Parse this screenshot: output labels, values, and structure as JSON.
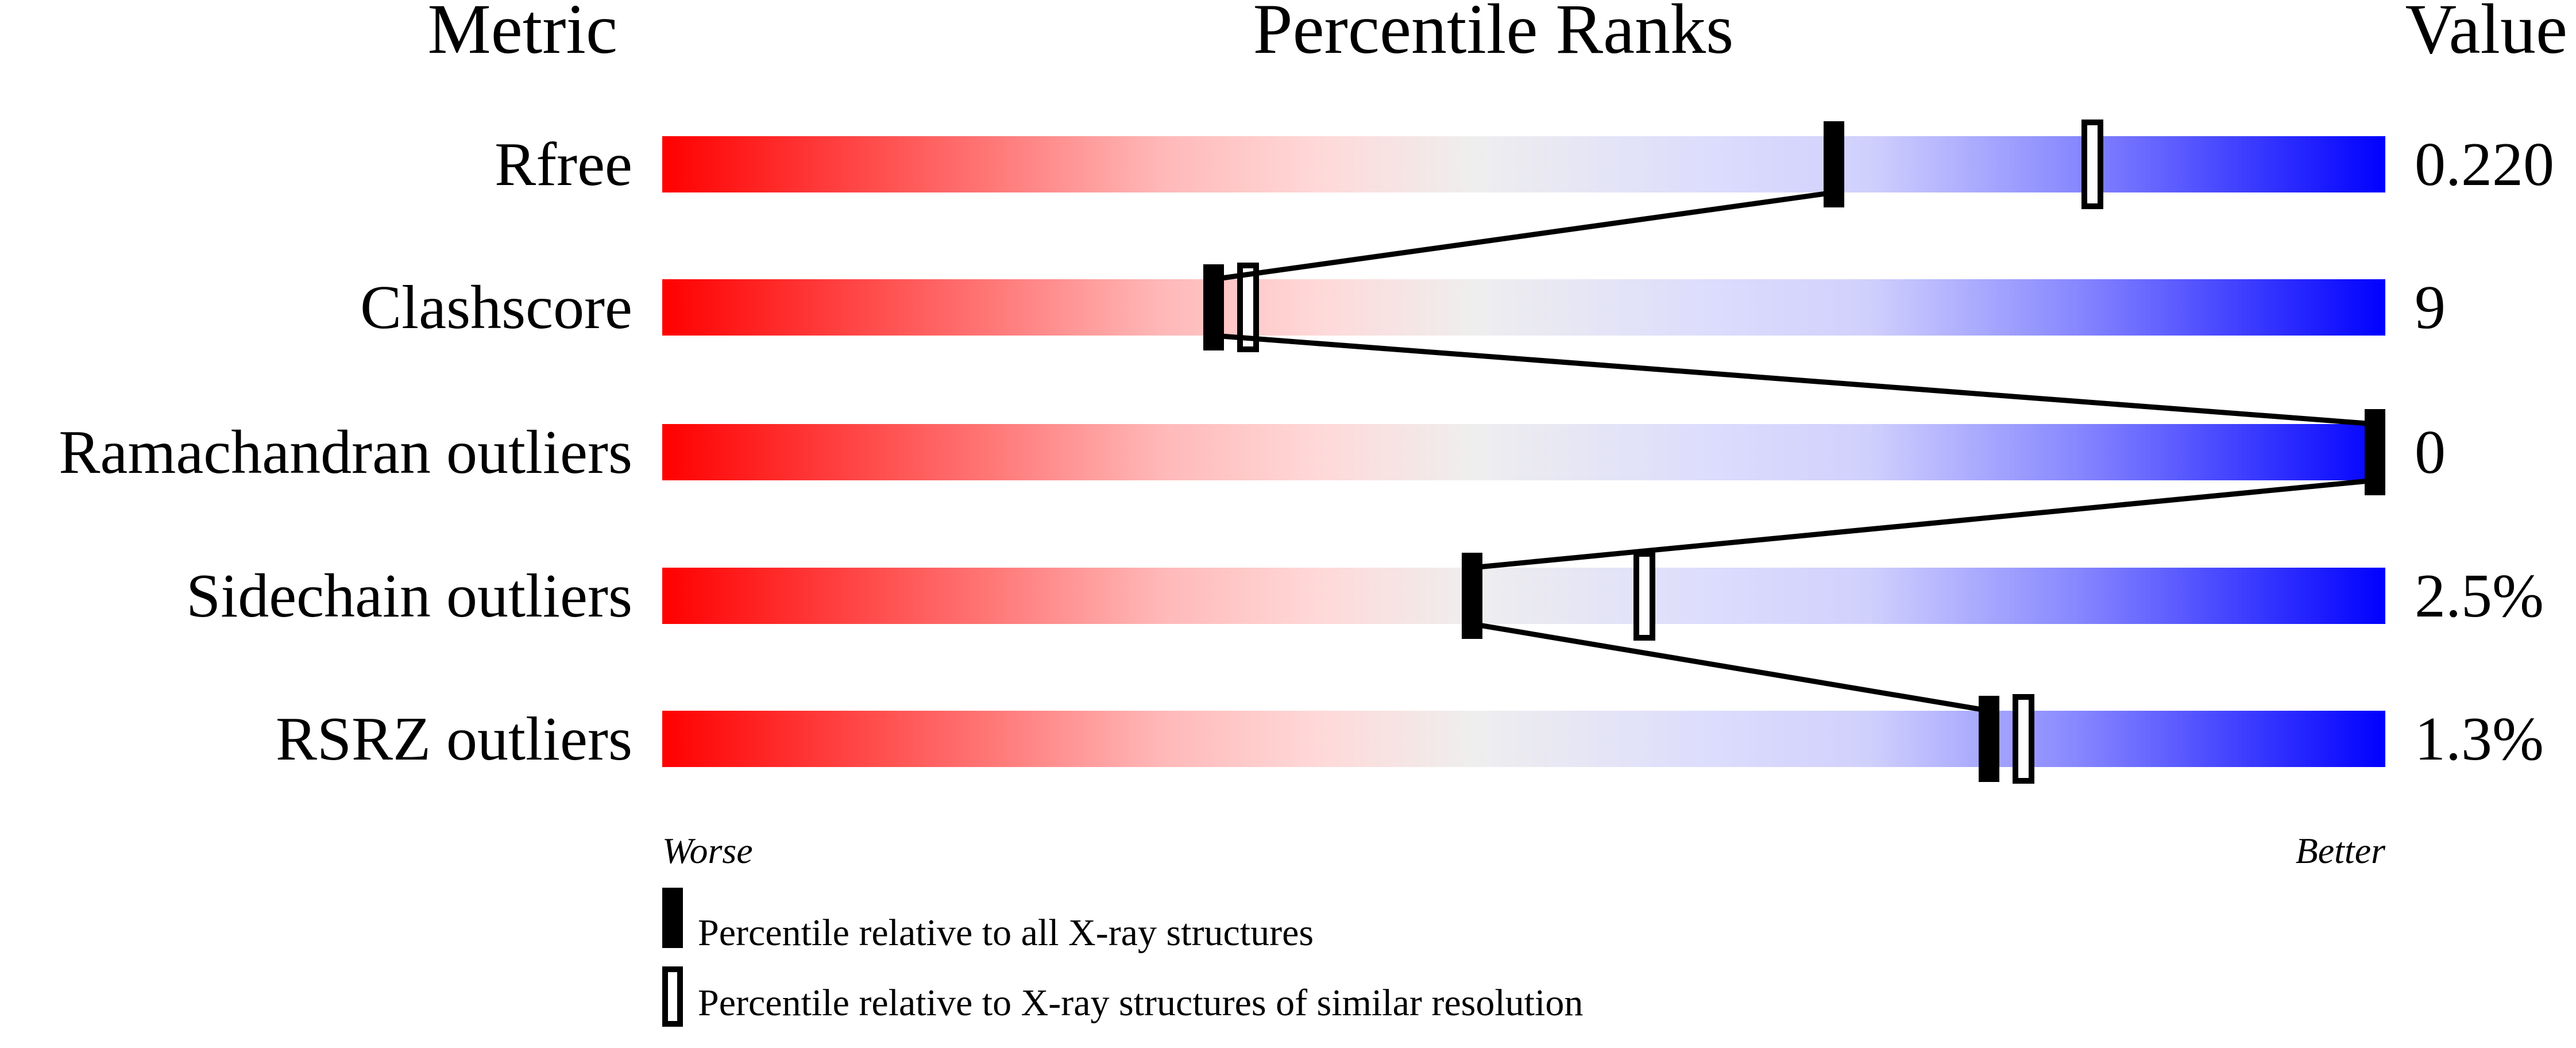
{
  "chart_data": {
    "type": "percentile-slider",
    "headers": {
      "metric": "Metric",
      "ranks": "Percentile Ranks",
      "value": "Value"
    },
    "xrange": [
      0,
      100
    ],
    "worse_label": "Worse",
    "better_label": "Better",
    "metrics": [
      {
        "name": "Rfree",
        "value": "0.220",
        "percentile_all": 68,
        "percentile_similar": 83
      },
      {
        "name": "Clashscore",
        "value": "9",
        "percentile_all": 32,
        "percentile_similar": 34
      },
      {
        "name": "Ramachandran outliers",
        "value": "0",
        "percentile_all": 100,
        "percentile_similar": 100
      },
      {
        "name": "Sidechain outliers",
        "value": "2.5%",
        "percentile_all": 47,
        "percentile_similar": 57
      },
      {
        "name": "RSRZ outliers",
        "value": "1.3%",
        "percentile_all": 77,
        "percentile_similar": 79
      }
    ],
    "legend": [
      {
        "marker": "filled",
        "label": "Percentile relative to all X-ray structures"
      },
      {
        "marker": "open",
        "label": "Percentile relative to X-ray structures of similar resolution"
      }
    ],
    "colors": {
      "worse": "#ff0000",
      "mid": "#eeeeee",
      "better": "#0000ff"
    }
  }
}
